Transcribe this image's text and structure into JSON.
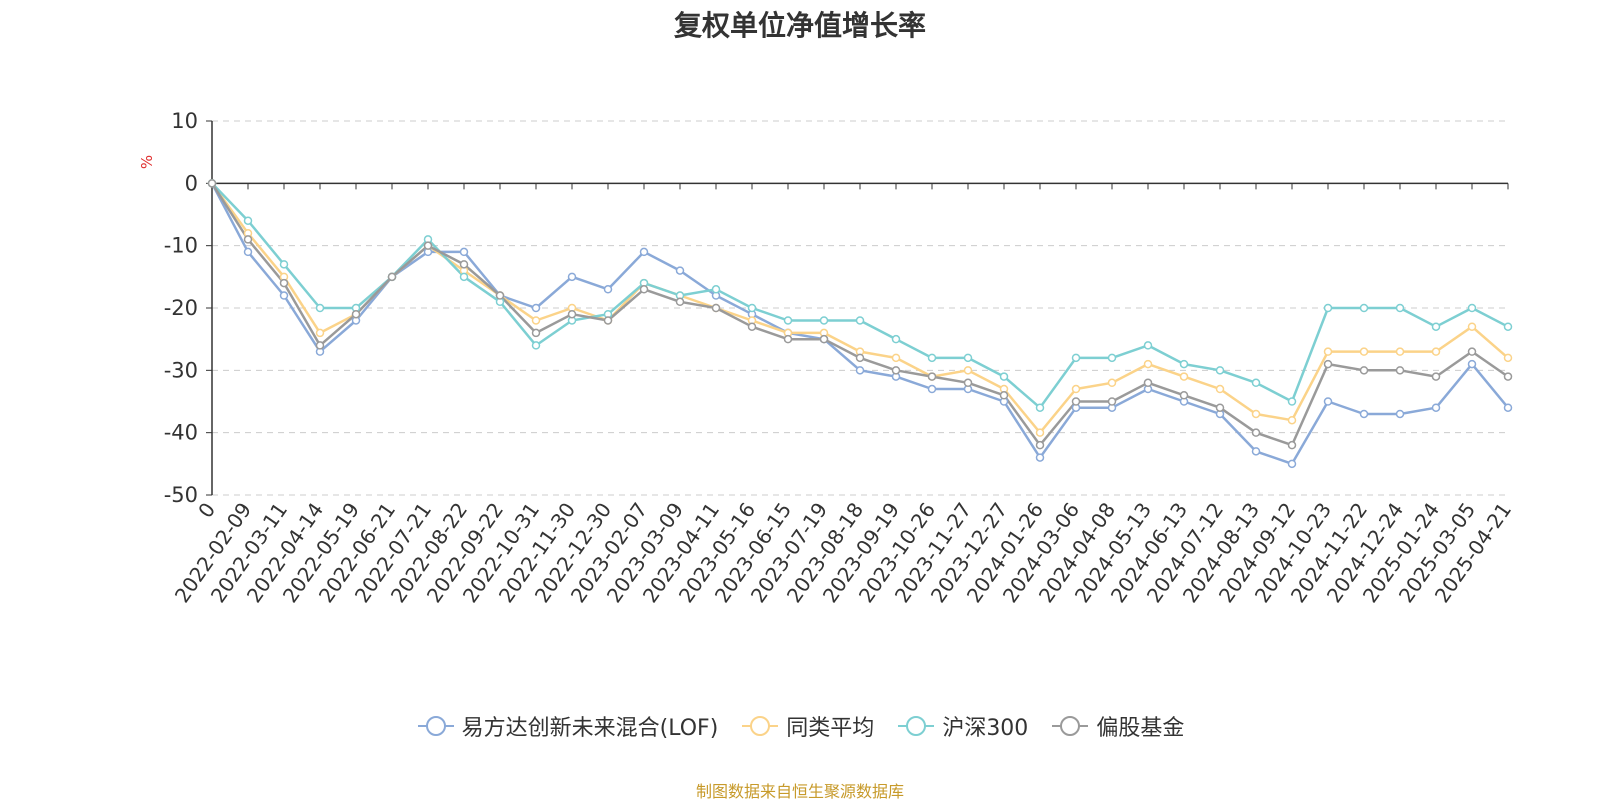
{
  "chart_data": {
    "type": "line",
    "title": "复权单位净值增长率",
    "ylabel": "%",
    "ylim": [
      -50,
      10
    ],
    "yticks": [
      10,
      0,
      -10,
      -20,
      -30,
      -40,
      -50
    ],
    "grid": true,
    "legend_position": "bottom",
    "x_tick_labels": [
      "0",
      "2022-02-09",
      "2022-03-11",
      "2022-04-14",
      "2022-05-19",
      "2022-06-21",
      "2022-07-21",
      "2022-08-22",
      "2022-09-22",
      "2022-10-31",
      "2022-11-30",
      "2022-12-30",
      "2023-02-07",
      "2023-03-09",
      "2023-04-11",
      "2023-05-16",
      "2023-06-15",
      "2023-07-19",
      "2023-08-18",
      "2023-09-19",
      "2023-10-26",
      "2023-11-27",
      "2023-12-27",
      "2024-01-26",
      "2024-03-06",
      "2024-04-08",
      "2024-05-13",
      "2024-06-13",
      "2024-07-12",
      "2024-08-13",
      "2024-09-12",
      "2024-10-23",
      "2024-11-22",
      "2024-12-24",
      "2025-01-24",
      "2025-03-05",
      "2025-04-21"
    ],
    "series": [
      {
        "name": "易方达创新未来混合(LOF)",
        "color": "#8aa9d8",
        "values": [
          0,
          -11,
          -18,
          -27,
          -22,
          -15,
          -11,
          -11,
          -18,
          -20,
          -15,
          -17,
          -11,
          -14,
          -18,
          -21,
          -24,
          -25,
          -30,
          -31,
          -33,
          -33,
          -35,
          -44,
          -36,
          -36,
          -33,
          -35,
          -37,
          -43,
          -45,
          -35,
          -37,
          -37,
          -36,
          -29,
          -36
        ]
      },
      {
        "name": "同类平均",
        "color": "#fbd389",
        "values": [
          0,
          -8,
          -15,
          -24,
          -21,
          -15,
          -10,
          -14,
          -18,
          -22,
          -20,
          -22,
          -16,
          -18,
          -20,
          -22,
          -24,
          -24,
          -27,
          -28,
          -31,
          -30,
          -33,
          -40,
          -33,
          -32,
          -29,
          -31,
          -33,
          -37,
          -38,
          -27,
          -27,
          -27,
          -27,
          -23,
          -28
        ]
      },
      {
        "name": "沪深300",
        "color": "#7dcfd2",
        "values": [
          0,
          -6,
          -13,
          -20,
          -20,
          -15,
          -9,
          -15,
          -19,
          -26,
          -22,
          -21,
          -16,
          -18,
          -17,
          -20,
          -22,
          -22,
          -22,
          -25,
          -28,
          -28,
          -31,
          -36,
          -28,
          -28,
          -26,
          -29,
          -30,
          -32,
          -35,
          -20,
          -20,
          -20,
          -23,
          -20,
          -23
        ]
      },
      {
        "name": "偏股基金",
        "color": "#9a9a9a",
        "values": [
          0,
          -9,
          -16,
          -26,
          -21,
          -15,
          -10,
          -13,
          -18,
          -24,
          -21,
          -22,
          -17,
          -19,
          -20,
          -23,
          -25,
          -25,
          -28,
          -30,
          -31,
          -32,
          -34,
          -42,
          -35,
          -35,
          -32,
          -34,
          -36,
          -40,
          -42,
          -29,
          -30,
          -30,
          -31,
          -27,
          -31
        ]
      }
    ]
  },
  "source_note": "制图数据来自恒生聚源数据库"
}
